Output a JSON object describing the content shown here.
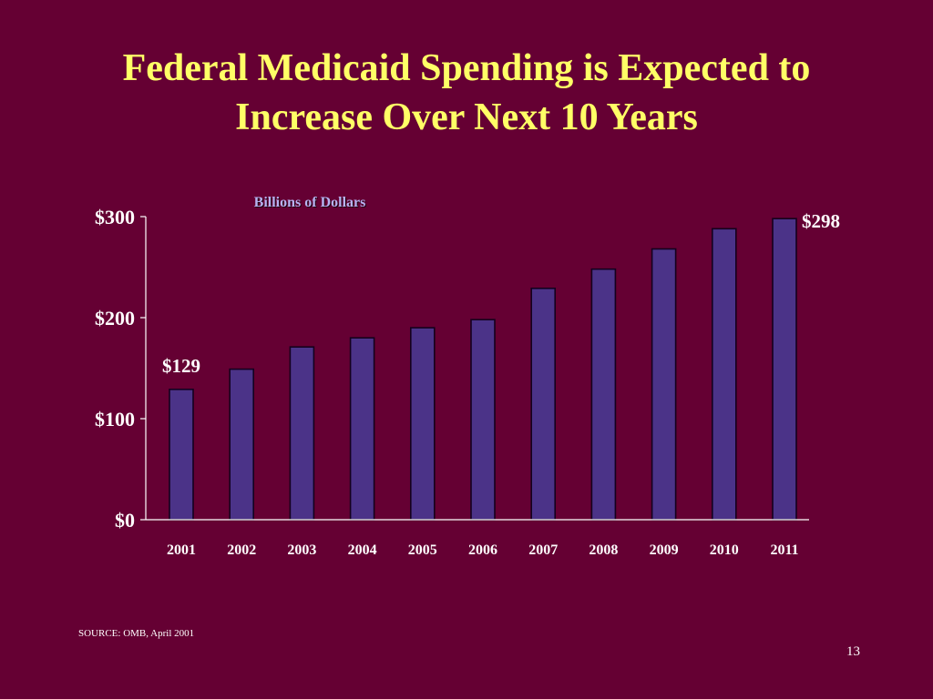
{
  "slide": {
    "title_line1": "Federal Medicaid Spending is Expected to",
    "title_line2": "Increase Over Next 10 Years",
    "source": "SOURCE:  OMB, April 2001",
    "page_number": "13"
  },
  "colors": {
    "background": "#650033",
    "title": "#ffff66",
    "bar_fill": "#4b3388",
    "bar_outline": "#14001e",
    "axis": "#ffffff",
    "units_label": "#b7b3f0"
  },
  "chart_data": {
    "type": "bar",
    "title": "",
    "units_label": "Billions of Dollars",
    "xlabel": "",
    "ylabel": "",
    "categories": [
      "2001",
      "2002",
      "2003",
      "2004",
      "2005",
      "2006",
      "2007",
      "2008",
      "2009",
      "2010",
      "2011"
    ],
    "values": [
      129,
      149,
      171,
      180,
      190,
      198,
      229,
      248,
      268,
      288,
      298
    ],
    "ylim": [
      0,
      300
    ],
    "yticks": [
      0,
      100,
      200,
      300
    ],
    "ytick_labels": [
      "$0",
      "$100",
      "$200",
      "$300"
    ],
    "data_labels": [
      {
        "category": "2001",
        "text": "$129"
      },
      {
        "category": "2011",
        "text": "$298"
      }
    ],
    "grid": false,
    "legend": "none"
  }
}
